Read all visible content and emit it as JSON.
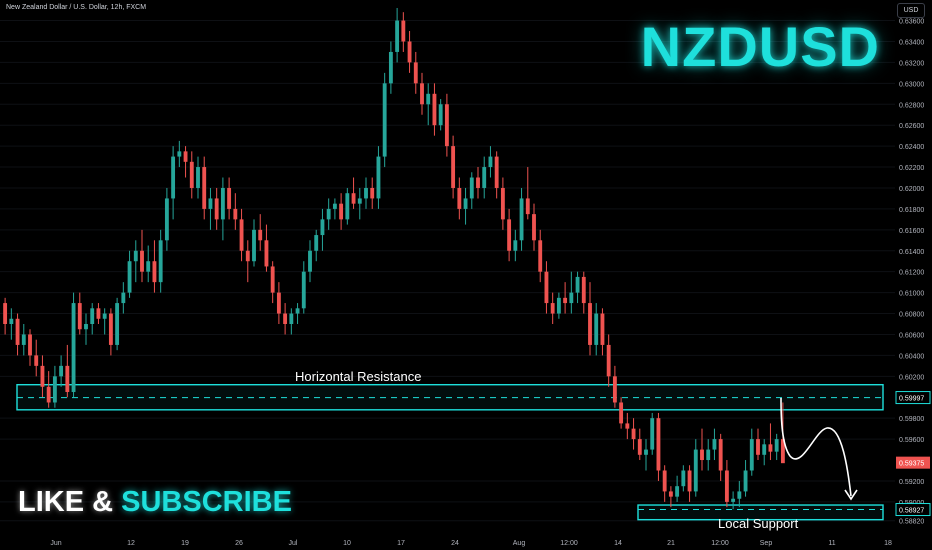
{
  "header": {
    "title": "New Zealand Dollar / U.S. Dollar, 12h, FXCM",
    "currency": "USD"
  },
  "symbol": "NZDUSD",
  "cta": {
    "like": "LIKE",
    "amp": "&",
    "subscribe": "SUBSCRIBE"
  },
  "colors": {
    "up": "#26a69a",
    "down": "#ef5350",
    "accent": "#1ee0dc",
    "background": "#000000"
  },
  "chart_data": {
    "type": "candlestick",
    "ylim": [
      0.5876,
      0.6372
    ],
    "price_ticks": [
      "0.63600",
      "0.63400",
      "0.63200",
      "0.63000",
      "0.62800",
      "0.62600",
      "0.62400",
      "0.62200",
      "0.62000",
      "0.61800",
      "0.61600",
      "0.61400",
      "0.61200",
      "0.61000",
      "0.60800",
      "0.60600",
      "0.60400",
      "0.60200",
      "0.59800",
      "0.59600",
      "0.59200",
      "0.59000",
      "0.58820"
    ],
    "time_ticks": [
      "Jun",
      "12",
      "19",
      "26",
      "Jul",
      "10",
      "17",
      "24",
      "Aug",
      "12:00",
      "14",
      "21",
      "12:00",
      "Sep",
      "11",
      "18"
    ],
    "last_price": "0.59375",
    "zones": [
      {
        "name": "Horizontal Resistance",
        "low": 0.5988,
        "high": 0.6012,
        "level": "0.59997"
      },
      {
        "name": "Local Support",
        "low": 0.5883,
        "high": 0.5897,
        "level": "0.58927"
      }
    ],
    "candles": [
      [
        0.609,
        0.6095,
        0.606,
        0.607
      ],
      [
        0.607,
        0.6085,
        0.6055,
        0.6075
      ],
      [
        0.6075,
        0.608,
        0.604,
        0.605
      ],
      [
        0.605,
        0.607,
        0.604,
        0.606
      ],
      [
        0.606,
        0.6065,
        0.603,
        0.604
      ],
      [
        0.604,
        0.6055,
        0.602,
        0.603
      ],
      [
        0.603,
        0.604,
        0.6,
        0.601
      ],
      [
        0.601,
        0.6025,
        0.599,
        0.5995
      ],
      [
        0.5995,
        0.603,
        0.599,
        0.602
      ],
      [
        0.602,
        0.604,
        0.601,
        0.603
      ],
      [
        0.603,
        0.605,
        0.6,
        0.6005
      ],
      [
        0.6005,
        0.61,
        0.6,
        0.609
      ],
      [
        0.609,
        0.61,
        0.606,
        0.6065
      ],
      [
        0.6065,
        0.608,
        0.605,
        0.607
      ],
      [
        0.607,
        0.609,
        0.606,
        0.6085
      ],
      [
        0.6085,
        0.609,
        0.607,
        0.6075
      ],
      [
        0.6075,
        0.6085,
        0.606,
        0.608
      ],
      [
        0.608,
        0.6085,
        0.604,
        0.605
      ],
      [
        0.605,
        0.6095,
        0.6045,
        0.609
      ],
      [
        0.609,
        0.611,
        0.608,
        0.61
      ],
      [
        0.61,
        0.614,
        0.6095,
        0.613
      ],
      [
        0.613,
        0.615,
        0.611,
        0.614
      ],
      [
        0.614,
        0.616,
        0.611,
        0.612
      ],
      [
        0.612,
        0.6145,
        0.611,
        0.613
      ],
      [
        0.613,
        0.615,
        0.61,
        0.611
      ],
      [
        0.611,
        0.616,
        0.61,
        0.615
      ],
      [
        0.615,
        0.62,
        0.614,
        0.619
      ],
      [
        0.619,
        0.624,
        0.617,
        0.623
      ],
      [
        0.623,
        0.6245,
        0.622,
        0.6235
      ],
      [
        0.6235,
        0.624,
        0.621,
        0.6225
      ],
      [
        0.6225,
        0.6235,
        0.619,
        0.62
      ],
      [
        0.62,
        0.623,
        0.619,
        0.622
      ],
      [
        0.622,
        0.623,
        0.617,
        0.618
      ],
      [
        0.618,
        0.62,
        0.616,
        0.619
      ],
      [
        0.619,
        0.62,
        0.616,
        0.617
      ],
      [
        0.617,
        0.621,
        0.615,
        0.62
      ],
      [
        0.62,
        0.621,
        0.617,
        0.618
      ],
      [
        0.618,
        0.6195,
        0.616,
        0.617
      ],
      [
        0.617,
        0.618,
        0.613,
        0.614
      ],
      [
        0.614,
        0.615,
        0.611,
        0.613
      ],
      [
        0.613,
        0.617,
        0.6125,
        0.616
      ],
      [
        0.616,
        0.6175,
        0.614,
        0.615
      ],
      [
        0.615,
        0.6165,
        0.612,
        0.6125
      ],
      [
        0.6125,
        0.613,
        0.609,
        0.61
      ],
      [
        0.61,
        0.611,
        0.607,
        0.608
      ],
      [
        0.608,
        0.609,
        0.606,
        0.607
      ],
      [
        0.607,
        0.6085,
        0.606,
        0.608
      ],
      [
        0.608,
        0.609,
        0.607,
        0.6085
      ],
      [
        0.6085,
        0.613,
        0.608,
        0.612
      ],
      [
        0.612,
        0.615,
        0.611,
        0.614
      ],
      [
        0.614,
        0.616,
        0.613,
        0.6155
      ],
      [
        0.6155,
        0.618,
        0.614,
        0.617
      ],
      [
        0.617,
        0.619,
        0.616,
        0.618
      ],
      [
        0.618,
        0.619,
        0.617,
        0.6185
      ],
      [
        0.6185,
        0.6195,
        0.616,
        0.617
      ],
      [
        0.617,
        0.62,
        0.6165,
        0.6195
      ],
      [
        0.6195,
        0.621,
        0.618,
        0.6185
      ],
      [
        0.6185,
        0.62,
        0.617,
        0.619
      ],
      [
        0.619,
        0.621,
        0.618,
        0.62
      ],
      [
        0.62,
        0.621,
        0.618,
        0.619
      ],
      [
        0.619,
        0.624,
        0.618,
        0.623
      ],
      [
        0.623,
        0.631,
        0.622,
        0.63
      ],
      [
        0.63,
        0.634,
        0.629,
        0.633
      ],
      [
        0.633,
        0.6372,
        0.632,
        0.636
      ],
      [
        0.636,
        0.6368,
        0.633,
        0.634
      ],
      [
        0.634,
        0.635,
        0.631,
        0.632
      ],
      [
        0.632,
        0.633,
        0.629,
        0.63
      ],
      [
        0.63,
        0.631,
        0.627,
        0.628
      ],
      [
        0.628,
        0.63,
        0.626,
        0.629
      ],
      [
        0.629,
        0.63,
        0.625,
        0.626
      ],
      [
        0.626,
        0.6285,
        0.6255,
        0.628
      ],
      [
        0.628,
        0.629,
        0.623,
        0.624
      ],
      [
        0.624,
        0.625,
        0.619,
        0.62
      ],
      [
        0.62,
        0.621,
        0.617,
        0.618
      ],
      [
        0.618,
        0.62,
        0.6165,
        0.619
      ],
      [
        0.619,
        0.6215,
        0.618,
        0.621
      ],
      [
        0.621,
        0.622,
        0.619,
        0.62
      ],
      [
        0.62,
        0.623,
        0.619,
        0.622
      ],
      [
        0.622,
        0.624,
        0.621,
        0.623
      ],
      [
        0.623,
        0.6235,
        0.619,
        0.62
      ],
      [
        0.62,
        0.621,
        0.616,
        0.617
      ],
      [
        0.617,
        0.618,
        0.613,
        0.614
      ],
      [
        0.614,
        0.616,
        0.613,
        0.615
      ],
      [
        0.615,
        0.62,
        0.614,
        0.619
      ],
      [
        0.619,
        0.622,
        0.617,
        0.6175
      ],
      [
        0.6175,
        0.6185,
        0.614,
        0.615
      ],
      [
        0.615,
        0.616,
        0.611,
        0.612
      ],
      [
        0.612,
        0.613,
        0.608,
        0.609
      ],
      [
        0.609,
        0.61,
        0.607,
        0.608
      ],
      [
        0.608,
        0.61,
        0.6075,
        0.6095
      ],
      [
        0.6095,
        0.611,
        0.608,
        0.609
      ],
      [
        0.609,
        0.612,
        0.608,
        0.61
      ],
      [
        0.61,
        0.612,
        0.609,
        0.6115
      ],
      [
        0.6115,
        0.612,
        0.608,
        0.609
      ],
      [
        0.609,
        0.611,
        0.604,
        0.605
      ],
      [
        0.605,
        0.609,
        0.604,
        0.608
      ],
      [
        0.608,
        0.6085,
        0.604,
        0.605
      ],
      [
        0.605,
        0.606,
        0.601,
        0.602
      ],
      [
        0.602,
        0.603,
        0.599,
        0.5995
      ],
      [
        0.5995,
        0.6,
        0.597,
        0.5975
      ],
      [
        0.5975,
        0.5985,
        0.596,
        0.597
      ],
      [
        0.597,
        0.598,
        0.595,
        0.596
      ],
      [
        0.596,
        0.597,
        0.594,
        0.5945
      ],
      [
        0.5945,
        0.596,
        0.593,
        0.595
      ],
      [
        0.595,
        0.5985,
        0.5945,
        0.598
      ],
      [
        0.598,
        0.5985,
        0.592,
        0.593
      ],
      [
        0.593,
        0.5935,
        0.59,
        0.591
      ],
      [
        0.591,
        0.5915,
        0.5895,
        0.5905
      ],
      [
        0.5905,
        0.5925,
        0.59,
        0.5915
      ],
      [
        0.5915,
        0.5935,
        0.591,
        0.593
      ],
      [
        0.593,
        0.5935,
        0.59,
        0.591
      ],
      [
        0.591,
        0.596,
        0.5905,
        0.595
      ],
      [
        0.595,
        0.597,
        0.593,
        0.594
      ],
      [
        0.594,
        0.596,
        0.593,
        0.595
      ],
      [
        0.595,
        0.597,
        0.594,
        0.596
      ],
      [
        0.596,
        0.5965,
        0.592,
        0.593
      ],
      [
        0.593,
        0.594,
        0.5895,
        0.59
      ],
      [
        0.59,
        0.591,
        0.5893,
        0.5903
      ],
      [
        0.5903,
        0.592,
        0.5895,
        0.591
      ],
      [
        0.591,
        0.594,
        0.5905,
        0.593
      ],
      [
        0.593,
        0.597,
        0.5925,
        0.596
      ],
      [
        0.596,
        0.597,
        0.594,
        0.5945
      ],
      [
        0.5945,
        0.596,
        0.5935,
        0.5955
      ],
      [
        0.5955,
        0.5975,
        0.594,
        0.5948
      ],
      [
        0.5948,
        0.5965,
        0.594,
        0.596
      ],
      [
        0.596,
        0.5995,
        0.594,
        0.5937
      ]
    ]
  }
}
